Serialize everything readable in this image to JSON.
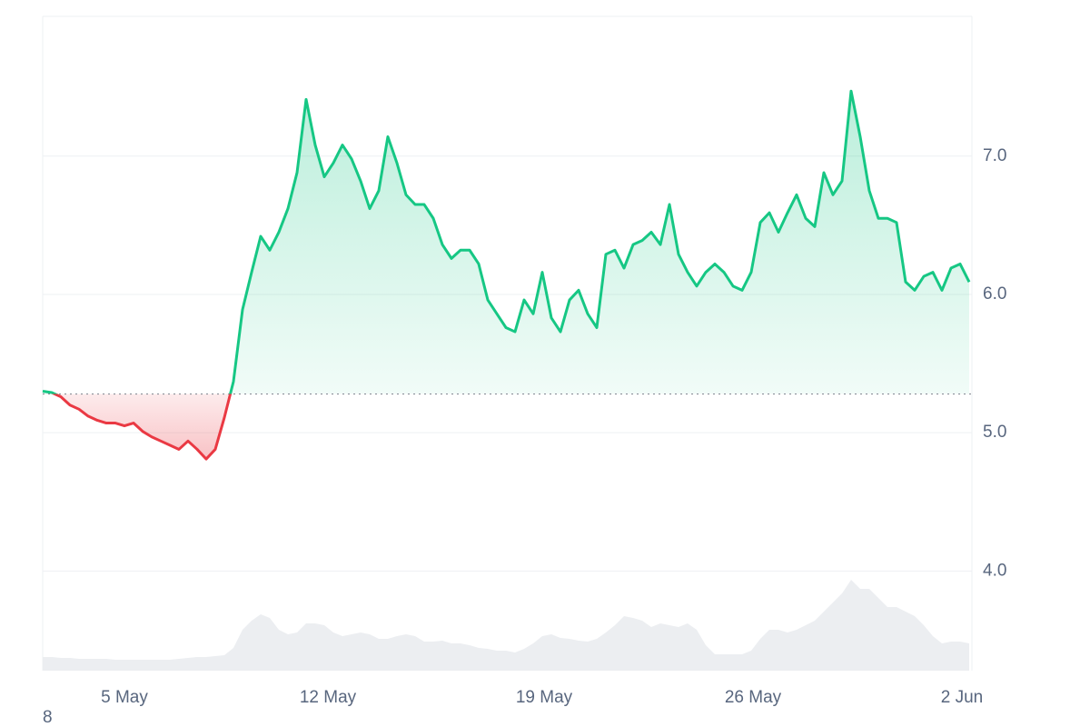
{
  "chart_data": {
    "type": "line",
    "footnote": "8",
    "baseline": 5.28,
    "up_color": "#16c784",
    "down_color": "#ea3943",
    "grid": true,
    "xlim": [
      0,
      102.3
    ],
    "xticks": [
      {
        "value": 9,
        "label": "5 May"
      },
      {
        "value": 31.4,
        "label": "12 May"
      },
      {
        "value": 55.2,
        "label": "19 May"
      },
      {
        "value": 78.2,
        "label": "26 May"
      },
      {
        "value": 101.2,
        "label": "2 Jun"
      }
    ],
    "ylim": [
      3.28,
      8.01
    ],
    "yticks": [
      {
        "value": 4,
        "label": "4.0"
      },
      {
        "value": 5,
        "label": "5.0"
      },
      {
        "value": 6,
        "label": "6.0"
      },
      {
        "value": 7,
        "label": "7.0"
      }
    ],
    "y2lim": [
      0,
      720
    ],
    "series": [
      {
        "color": "#16c784",
        "values": [
          5.3,
          5.29,
          5.26,
          5.2,
          5.17,
          5.12,
          5.09,
          5.07,
          5.07,
          5.05,
          5.07,
          5.01,
          4.97,
          4.94,
          4.91,
          4.88,
          4.94,
          4.88,
          4.81,
          4.88,
          5.11,
          5.37,
          5.89,
          6.16,
          6.42,
          6.32,
          6.45,
          6.62,
          6.88,
          7.41,
          7.08,
          6.85,
          6.95,
          7.08,
          6.98,
          6.82,
          6.62,
          6.75,
          7.14,
          6.95,
          6.72,
          6.65,
          6.65,
          6.55,
          6.36,
          6.26,
          6.32,
          6.32,
          6.22,
          5.96,
          5.86,
          5.76,
          5.73,
          5.96,
          5.86,
          6.16,
          5.83,
          5.73,
          5.96,
          6.03,
          5.86,
          5.76,
          6.29,
          6.32,
          6.19,
          6.36,
          6.39,
          6.45,
          6.36,
          6.65,
          6.29,
          6.16,
          6.06,
          6.16,
          6.22,
          6.16,
          6.06,
          6.03,
          6.16,
          6.52,
          6.59,
          6.45,
          6.59,
          6.72,
          6.55,
          6.49,
          6.88,
          6.72,
          6.82,
          7.47,
          7.14,
          6.75,
          6.55,
          6.55,
          6.52,
          6.09,
          6.03,
          6.13,
          6.16,
          6.03,
          6.19,
          6.22,
          6.09
        ]
      },
      {
        "color": "#eceef1",
        "axis": "y2",
        "values": [
          15,
          15,
          14,
          14,
          13,
          13,
          13,
          13,
          12,
          12,
          12,
          12,
          12,
          12,
          12,
          13,
          14,
          15,
          15,
          16,
          17,
          25,
          45,
          55,
          62,
          58,
          45,
          40,
          42,
          52,
          52,
          50,
          42,
          38,
          40,
          42,
          40,
          35,
          35,
          38,
          40,
          38,
          32,
          32,
          33,
          30,
          30,
          28,
          25,
          24,
          22,
          22,
          20,
          24,
          30,
          38,
          40,
          36,
          35,
          33,
          32,
          35,
          42,
          50,
          60,
          58,
          55,
          48,
          52,
          50,
          48,
          52,
          45,
          28,
          18,
          18,
          18,
          18,
          22,
          35,
          45,
          45,
          42,
          45,
          50,
          55,
          65,
          75,
          85,
          100,
          90,
          90,
          80,
          70,
          70,
          65,
          60,
          50,
          38,
          30,
          32,
          32,
          30
        ]
      }
    ]
  }
}
